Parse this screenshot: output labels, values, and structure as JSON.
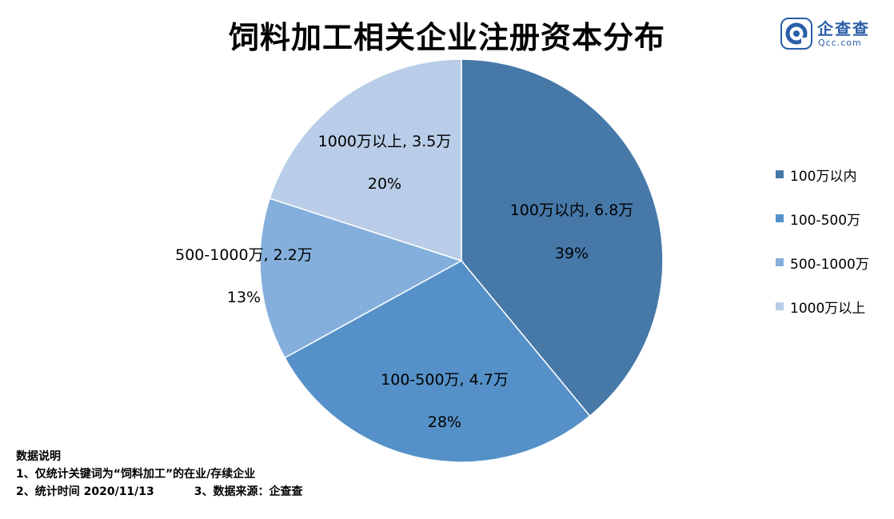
{
  "title": "饲料加工相关企业注册资本分布",
  "logo": {
    "brand": "企查查",
    "domain": "Qcc.com",
    "icon": "qcc-logo-icon",
    "color": "#2a5ea8"
  },
  "chart_data": {
    "type": "pie",
    "title": "饲料加工相关企业注册资本分布",
    "legend_position": "right",
    "slices": [
      {
        "name": "100万以内",
        "value_label": "6.8万",
        "value": 6.8,
        "percent": 39,
        "percent_label": "39%",
        "color": "#4678a8"
      },
      {
        "name": "100-500万",
        "value_label": "4.7万",
        "value": 4.7,
        "percent": 28,
        "percent_label": "28%",
        "color": "#5591c8"
      },
      {
        "name": "500-1000万",
        "value_label": "2.2万",
        "value": 2.2,
        "percent": 13,
        "percent_label": "13%",
        "color": "#84afdc"
      },
      {
        "name": "1000万以上",
        "value_label": "3.5万",
        "value": 3.5,
        "percent": 20,
        "percent_label": "20%",
        "color": "#b9cde8"
      }
    ]
  },
  "notes": {
    "heading": "数据说明",
    "line1": "1、仅统计关键词为“饲料加工”的在业/存续企业",
    "line2a": "2、统计时间 2020/11/13",
    "line2b": "3、数据来源：企查查"
  }
}
